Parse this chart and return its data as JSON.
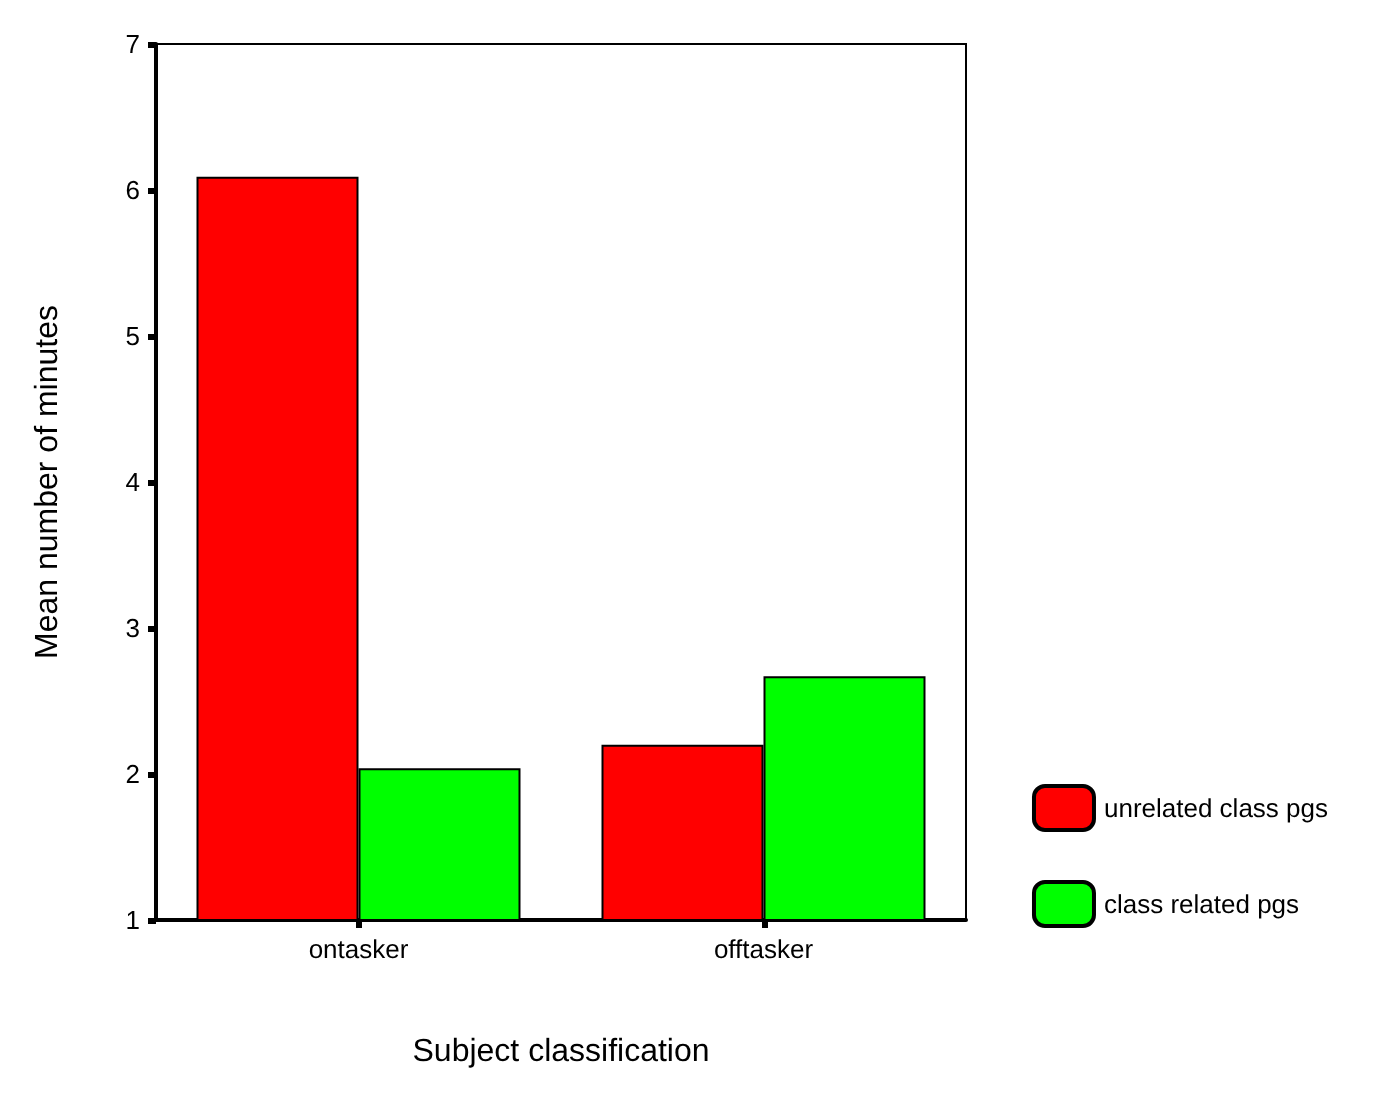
{
  "chart_data": {
    "type": "bar",
    "xlabel": "Subject classification",
    "ylabel": "Mean number of minutes",
    "categories": [
      "ontasker",
      "offtasker"
    ],
    "series": [
      {
        "name": "unrelated class pgs",
        "color": "#ff0000",
        "values": [
          6.09,
          2.2
        ]
      },
      {
        "name": "class related pgs",
        "color": "#00ff00",
        "values": [
          2.04,
          2.67
        ]
      }
    ],
    "ylim": [
      1,
      7
    ],
    "yticks": [
      1,
      2,
      3,
      4,
      5,
      6,
      7
    ],
    "grid": false,
    "legend": "bottom right"
  }
}
